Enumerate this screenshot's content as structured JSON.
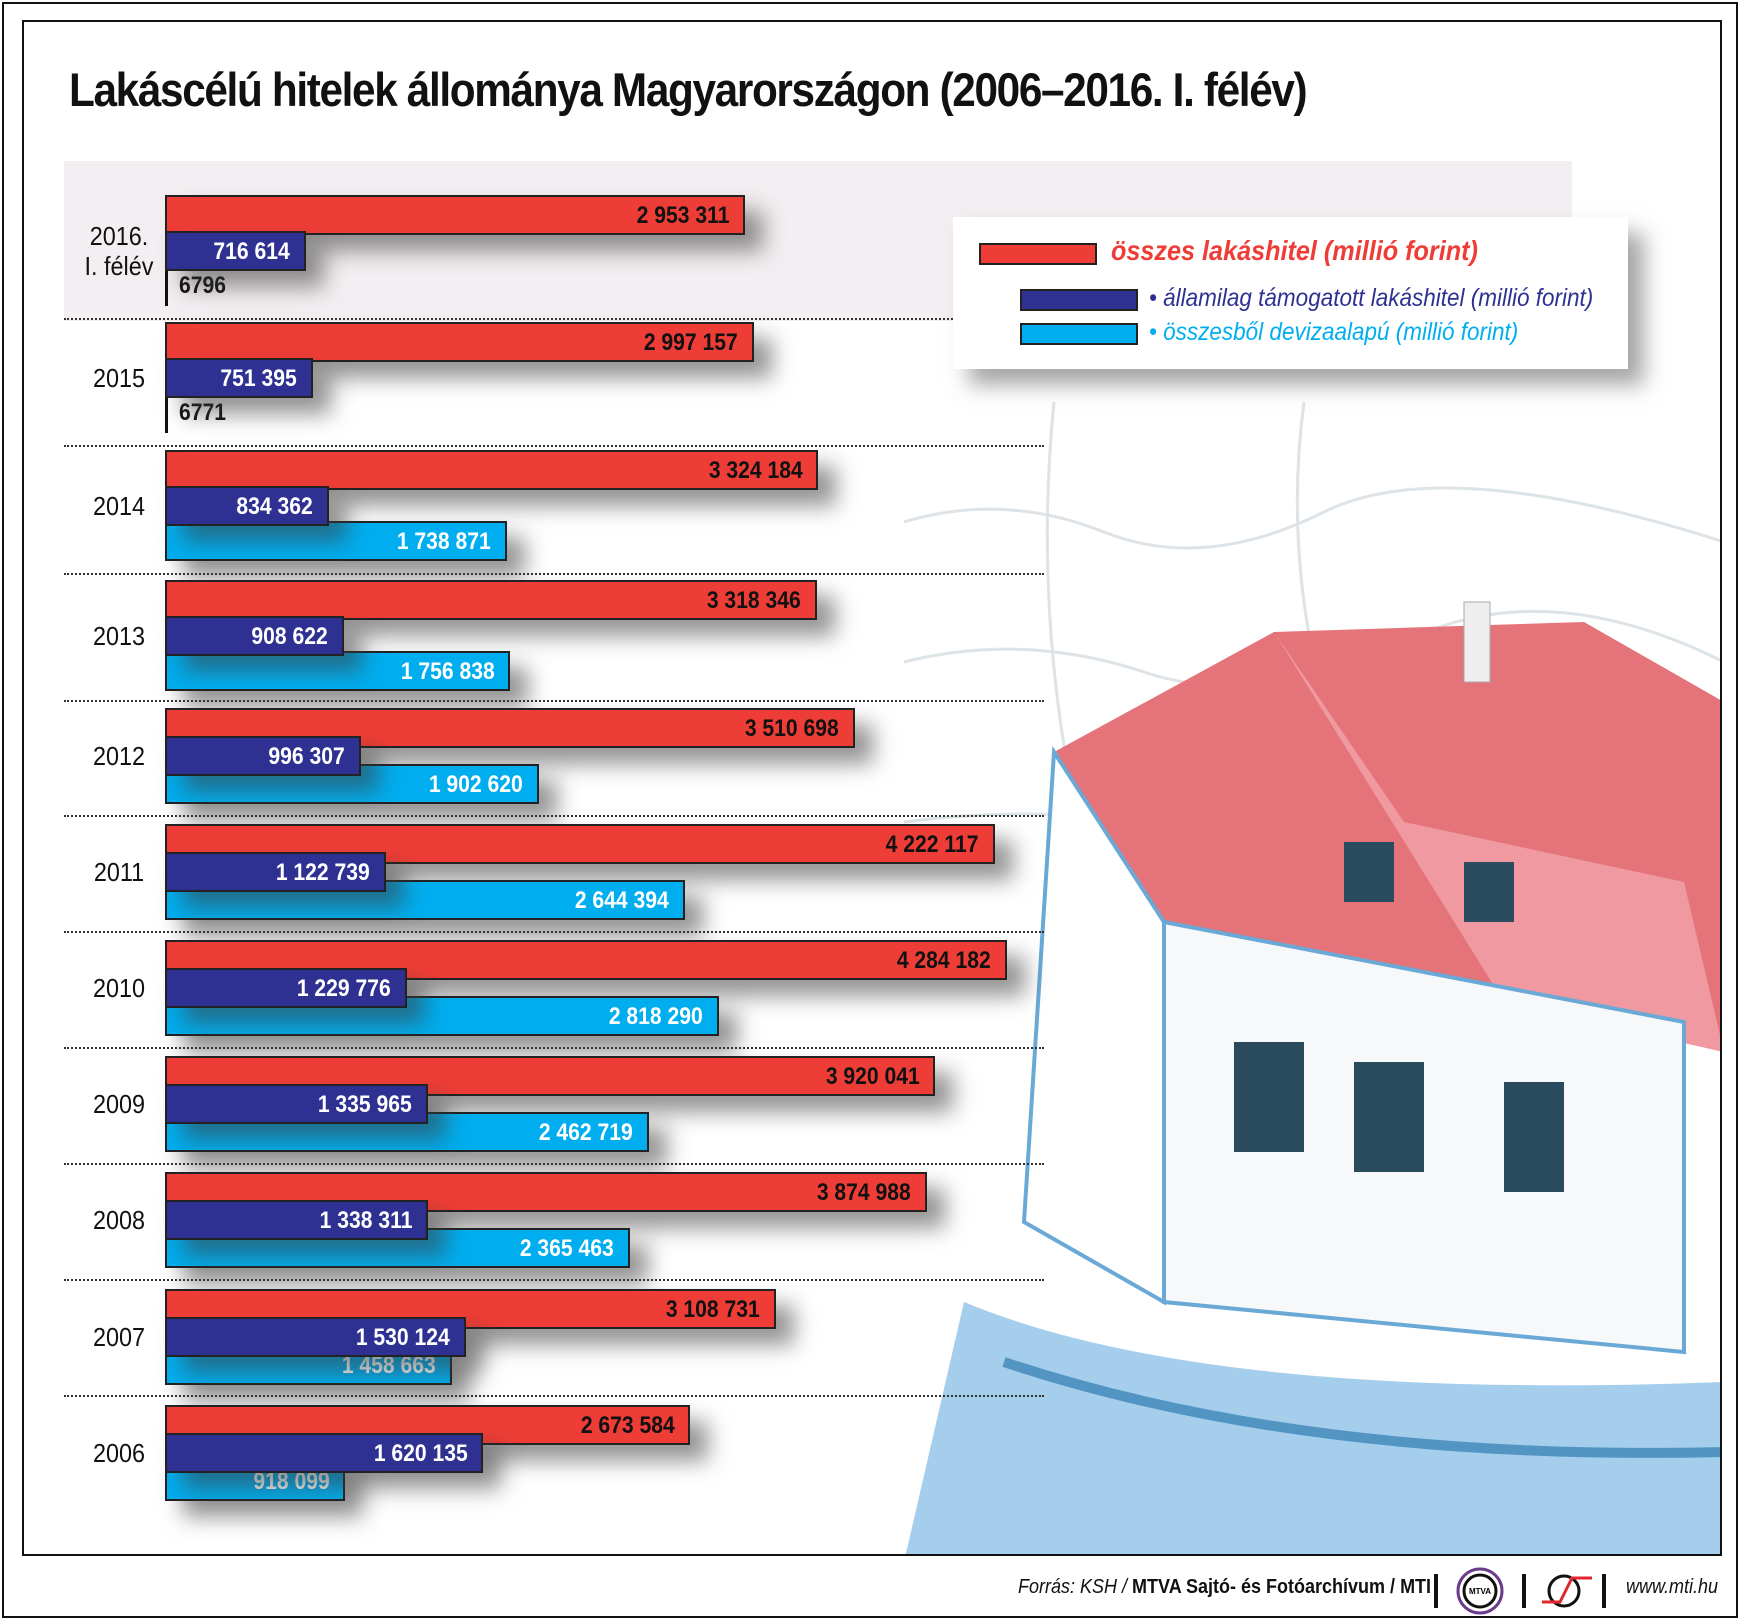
{
  "title": "Lakáscélú hitelek állománya Magyarországon (2006–2016. I. félév)",
  "chart_data": {
    "type": "bar",
    "orientation": "horizontal",
    "title": "Lakáscélú hitelek állománya Magyarországon (2006–2016. I. félév)",
    "categories": [
      "2016.\nI. félév",
      "2015",
      "2014",
      "2013",
      "2012",
      "2011",
      "2010",
      "2009",
      "2008",
      "2007",
      "2006"
    ],
    "series": [
      {
        "name": "összes lakáshitel (millió forint)",
        "color": "#ee3d36",
        "values": [
          2953311,
          2997157,
          3324184,
          3318346,
          3510698,
          4222117,
          4284182,
          3920041,
          3874988,
          3108731,
          2673584
        ],
        "labels": [
          "2 953 311",
          "2 997 157",
          "3 324 184",
          "3 318 346",
          "3 510 698",
          "4 222 117",
          "4 284 182",
          "3 920 041",
          "3 874 988",
          "3 108 731",
          "2 673 584"
        ]
      },
      {
        "name": "államilag támogatott lakáshitel (millió forint)",
        "color": "#2e3192",
        "values": [
          716614,
          751395,
          834362,
          908622,
          996307,
          1122739,
          1229776,
          1335965,
          1338311,
          1530124,
          1620135
        ],
        "labels": [
          "716 614",
          "751 395",
          "834 362",
          "908 622",
          "996 307",
          "1 122 739",
          "1 229 776",
          "1 335 965",
          "1 338 311",
          "1 530 124",
          "1 620 135"
        ]
      },
      {
        "name": "összesből devizaalapú (millió forint)",
        "color": "#00aeef",
        "values": [
          6796,
          6771,
          1738871,
          1756838,
          1902620,
          2644394,
          2818290,
          2462719,
          2365463,
          1458663,
          918099
        ],
        "labels": [
          "6796",
          "6771",
          "1 738 871",
          "1 756 838",
          "1 902 620",
          "2 644 394",
          "2 818 290",
          "2 462 719",
          "2 365 463",
          "1 458 663",
          "918 099"
        ]
      }
    ],
    "legend": "top-right",
    "grid": false
  },
  "legend": {
    "items": [
      {
        "label": "összes lakáshitel (millió forint)",
        "color": "#ee3d36"
      },
      {
        "label": "• államilag támogatott lakáshitel (millió forint)",
        "color": "#2e3192"
      },
      {
        "label": "• összesből devizaalapú (millió forint)",
        "color": "#00aeef"
      }
    ]
  },
  "footer": {
    "source_prefix": "Forrás: KSH / ",
    "source_bold": "MTVA Sajtó- és Fotóarchívum / MTI",
    "logo_text": "MTVA",
    "url": "www.mti.hu"
  }
}
